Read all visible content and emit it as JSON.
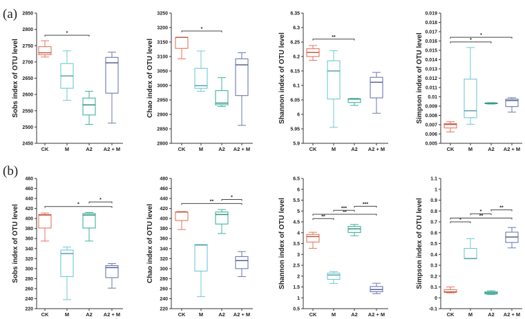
{
  "panel_labels": [
    "(a)",
    "(b)"
  ],
  "colors": {
    "CK": "#E8735A",
    "M": "#6CC9D6",
    "A2": "#3DB39B",
    "A2 + M": "#6A78B0",
    "axis": "#333333",
    "bracket": "#444444"
  },
  "chart_data": [
    {
      "type": "box",
      "row": 0,
      "title": "",
      "ylabel": "Sobs index of OTU level",
      "categories": [
        "CK",
        "M",
        "A2",
        "A2 + M"
      ],
      "ylim": [
        2450,
        2850
      ],
      "yticks": [
        "2450",
        "2500",
        "2550",
        "2600",
        "2650",
        "2700",
        "2750",
        "2800",
        "2850"
      ],
      "boxes": [
        [
          2715,
          2722,
          2728,
          2747,
          2765
        ],
        [
          2582,
          2619,
          2657,
          2695,
          2734
        ],
        [
          2508,
          2537,
          2568,
          2589,
          2610
        ],
        [
          2512,
          2604,
          2697,
          2714,
          2730
        ]
      ],
      "significance": [
        {
          "from": 0,
          "to": 2,
          "label": "*",
          "y": 2782
        }
      ]
    },
    {
      "type": "box",
      "row": 0,
      "title": "",
      "ylabel": "Chao index of OTU level",
      "categories": [
        "CK",
        "M",
        "A2",
        "A2 + M"
      ],
      "ylim": [
        2800,
        3250
      ],
      "yticks": [
        "2800",
        "2850",
        "2900",
        "2950",
        "3000",
        "3050",
        "3100",
        "3150",
        "3200",
        "3250"
      ],
      "boxes": [
        [
          3092,
          3128,
          3166,
          3166,
          3166
        ],
        [
          2980,
          2990,
          2999,
          3059,
          3119
        ],
        [
          2927,
          2933,
          2939,
          2982,
          3027
        ],
        [
          2862,
          2965,
          3071,
          3092,
          3113
        ]
      ],
      "significance": [
        {
          "from": 0,
          "to": 2,
          "label": "*",
          "y": 3188
        }
      ]
    },
    {
      "type": "box",
      "row": 0,
      "title": "",
      "ylabel": "Shannon index of OTU level",
      "categories": [
        "CK",
        "M",
        "A2",
        "A2 + M"
      ],
      "ylim": [
        5.9,
        6.35
      ],
      "yticks": [
        "5.9",
        "5.95",
        "6",
        "6.05",
        "6.1",
        "6.15",
        "6.2",
        "6.25",
        "6.3",
        "6.35"
      ],
      "boxes": [
        [
          6.187,
          6.2,
          6.214,
          6.227,
          6.238
        ],
        [
          5.955,
          6.053,
          6.15,
          6.185,
          6.22
        ],
        [
          6.031,
          6.041,
          6.053,
          6.054,
          6.055
        ],
        [
          6.004,
          6.057,
          6.111,
          6.128,
          6.145
        ]
      ],
      "significance": [
        {
          "from": 0,
          "to": 2,
          "label": "**",
          "y": 6.26
        }
      ]
    },
    {
      "type": "box",
      "row": 0,
      "title": "",
      "ylabel": "Simpson index of OTU level",
      "categories": [
        "CK",
        "M",
        "A2",
        "A2 + M"
      ],
      "ylim": [
        0.005,
        0.019
      ],
      "yticks": [
        "0.005",
        "0.006",
        "0.007",
        "0.008",
        "0.009",
        "0.01",
        "0.011",
        "0.012",
        "0.013",
        "0.014",
        "0.015",
        "0.016",
        "0.017",
        "0.018",
        "0.019"
      ],
      "boxes": [
        [
          0.00622,
          0.00665,
          0.00703,
          0.00712,
          0.00732
        ],
        [
          0.00705,
          0.00775,
          0.0085,
          0.0119,
          0.0153
        ],
        [
          0.00922,
          0.00926,
          0.0093,
          0.00934,
          0.00937
        ],
        [
          0.00835,
          0.00895,
          0.0096,
          0.00975,
          0.0099
        ]
      ],
      "significance": [
        {
          "from": 0,
          "to": 2,
          "label": "*",
          "y": 0.0159
        },
        {
          "from": 0,
          "to": 3,
          "label": "*",
          "y": 0.0164
        }
      ]
    },
    {
      "type": "box",
      "row": 1,
      "title": "",
      "ylabel": "Sobs index of OTU level",
      "categories": [
        "CK",
        "M",
        "A2",
        "A2 + M"
      ],
      "ylim": [
        220,
        480
      ],
      "yticks": [
        "220",
        "240",
        "260",
        "280",
        "300",
        "320",
        "340",
        "360",
        "380",
        "400",
        "420",
        "440",
        "460",
        "480"
      ],
      "boxes": [
        [
          355,
          381,
          407,
          408,
          411
        ],
        [
          238,
          284,
          330,
          337,
          343
        ],
        [
          355,
          381,
          407,
          410,
          412
        ],
        [
          261,
          282,
          302,
          306,
          310
        ]
      ],
      "significance": [
        {
          "from": 0,
          "to": 3,
          "label": "*",
          "y": 424
        },
        {
          "from": 2,
          "to": 3,
          "label": "*",
          "y": 433
        }
      ]
    },
    {
      "type": "box",
      "row": 1,
      "title": "",
      "ylabel": "Chao index of OTU level",
      "categories": [
        "CK",
        "M",
        "A2",
        "A2 + M"
      ],
      "ylim": [
        220,
        480
      ],
      "yticks": [
        "220",
        "240",
        "260",
        "280",
        "300",
        "320",
        "340",
        "360",
        "380",
        "400",
        "420",
        "440",
        "460",
        "480"
      ],
      "boxes": [
        [
          378,
          396,
          413,
          413,
          414
        ],
        [
          244,
          295,
          347,
          348,
          348
        ],
        [
          370,
          389,
          408,
          413,
          418
        ],
        [
          284,
          300,
          316,
          324,
          334
        ]
      ],
      "significance": [
        {
          "from": 0,
          "to": 3,
          "label": "**",
          "y": 430
        },
        {
          "from": 2,
          "to": 3,
          "label": "*",
          "y": 438
        }
      ]
    },
    {
      "type": "box",
      "row": 1,
      "title": "",
      "ylabel": "Shannon index of OTU level",
      "categories": [
        "CK",
        "M",
        "A2",
        "A2 + M"
      ],
      "ylim": [
        0.5,
        6.5
      ],
      "yticks": [
        "0.5",
        "1",
        "1.5",
        "2",
        "2.5",
        "3",
        "3.5",
        "4",
        "4.5",
        "5",
        "5.5",
        "6",
        "6.5"
      ],
      "boxes": [
        [
          3.28,
          3.57,
          3.82,
          3.92,
          4.02
        ],
        [
          1.66,
          1.85,
          2.05,
          2.14,
          2.21
        ],
        [
          3.86,
          4.01,
          4.18,
          4.29,
          4.38
        ],
        [
          1.19,
          1.28,
          1.38,
          1.52,
          1.67
        ]
      ],
      "significance": [
        {
          "from": 0,
          "to": 1,
          "label": "**",
          "y": 4.65
        },
        {
          "from": 0,
          "to": 3,
          "label": "**",
          "y": 4.85
        },
        {
          "from": 1,
          "to": 2,
          "label": "***",
          "y": 5.03
        },
        {
          "from": 2,
          "to": 3,
          "label": "***",
          "y": 5.22
        }
      ]
    },
    {
      "type": "box",
      "row": 1,
      "title": "",
      "ylabel": "Simpson index of OTU level",
      "categories": [
        "CK",
        "M",
        "A2",
        "A2 + M"
      ],
      "ylim": [
        -0.1,
        1.1
      ],
      "yticks": [
        "-0.1",
        "0",
        "0.1",
        "0.2",
        "0.3",
        "0.4",
        "0.5",
        "0.6",
        "0.7",
        "0.8",
        "0.9",
        "1",
        "1.1"
      ],
      "boxes": [
        [
          0.045,
          0.05,
          0.055,
          0.075,
          0.1
        ],
        [
          0.36,
          0.36,
          0.362,
          0.455,
          0.545
        ],
        [
          0.03,
          0.035,
          0.045,
          0.055,
          0.065
        ],
        [
          0.46,
          0.51,
          0.56,
          0.605,
          0.648
        ]
      ],
      "significance": [
        {
          "from": 0,
          "to": 1,
          "label": "*",
          "y": 0.7
        },
        {
          "from": 0,
          "to": 3,
          "label": "**",
          "y": 0.735
        },
        {
          "from": 1,
          "to": 2,
          "label": "*",
          "y": 0.775
        },
        {
          "from": 2,
          "to": 3,
          "label": "**",
          "y": 0.81
        }
      ]
    }
  ]
}
